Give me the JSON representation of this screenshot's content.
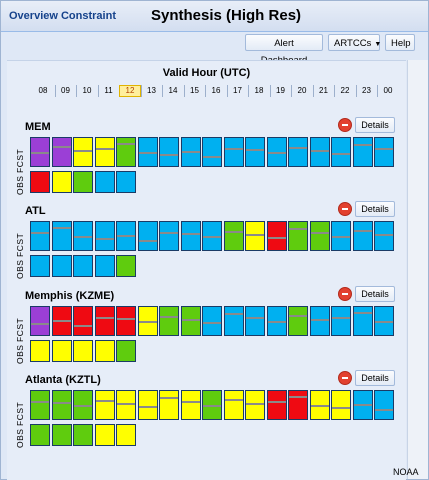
{
  "window": {
    "app_title": "Overview Constraint",
    "page_title": "Synthesis (High Res)"
  },
  "toolbar": {
    "alert_dashboard_label": "Alert Dashboard",
    "artccs_label": "ARTCCs",
    "help_label": "Help"
  },
  "timeline": {
    "title": "Valid Hour (UTC)",
    "hours": [
      "08",
      "09",
      "10",
      "11",
      "12",
      "13",
      "14",
      "15",
      "16",
      "17",
      "18",
      "19",
      "20",
      "21",
      "22",
      "23",
      "00"
    ],
    "current_hour": "12"
  },
  "colors": {
    "purple": "#9b3fd6",
    "red": "#ef0a12",
    "yellow": "#ffff00",
    "green": "#5fcc0e",
    "blue": "#00b0f0"
  },
  "groups": [
    {
      "name": "MEM",
      "details_label": "Details",
      "fcst_label": "FCST",
      "obs_label": "OBS",
      "fcst": [
        "purple",
        "purple",
        "yellow",
        "yellow",
        "green",
        "blue",
        "blue",
        "blue",
        "blue",
        "blue",
        "blue",
        "blue",
        "blue",
        "blue",
        "blue",
        "blue",
        "blue"
      ],
      "obs": [
        "red",
        "yellow",
        "green",
        "blue",
        "blue"
      ]
    },
    {
      "name": "ATL",
      "details_label": "Details",
      "fcst_label": "FCST",
      "obs_label": "OBS",
      "fcst": [
        "blue",
        "blue",
        "blue",
        "blue",
        "blue",
        "blue",
        "blue",
        "blue",
        "blue",
        "green",
        "yellow",
        "red",
        "green",
        "green",
        "blue",
        "blue",
        "blue"
      ],
      "obs": [
        "blue",
        "blue",
        "blue",
        "blue",
        "green"
      ]
    },
    {
      "name": "Memphis (KZME)",
      "details_label": "Details",
      "fcst_label": "FCST",
      "obs_label": "OBS",
      "fcst": [
        "purple",
        "red",
        "red",
        "red",
        "red",
        "yellow",
        "green",
        "green",
        "blue",
        "blue",
        "blue",
        "blue",
        "green",
        "blue",
        "blue",
        "blue",
        "blue"
      ],
      "obs": [
        "yellow",
        "yellow",
        "yellow",
        "yellow",
        "green"
      ]
    },
    {
      "name": "Atlanta (KZTL)",
      "details_label": "Details",
      "fcst_label": "FCST",
      "obs_label": "OBS",
      "fcst": [
        "green",
        "green",
        "green",
        "yellow",
        "yellow",
        "yellow",
        "yellow",
        "yellow",
        "green",
        "yellow",
        "yellow",
        "red",
        "red",
        "yellow",
        "yellow",
        "blue",
        "blue"
      ],
      "obs": [
        "green",
        "green",
        "green",
        "yellow",
        "yellow"
      ]
    }
  ],
  "footer": {
    "brand": "NOAA"
  }
}
